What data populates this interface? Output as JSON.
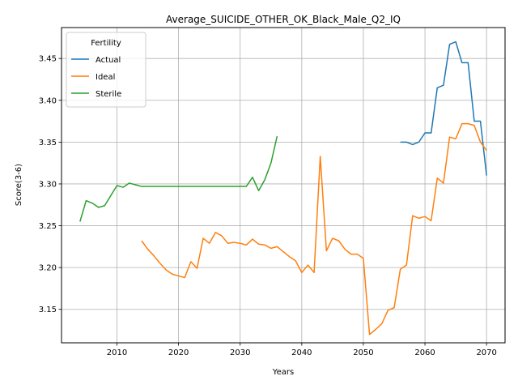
{
  "chart_data": {
    "type": "line",
    "title": "Average_SUICIDE_OTHER_OK_Black_Male_Q2_IQ",
    "xlabel": "Years",
    "ylabel": "Score(3-6)",
    "xlim": [
      2001,
      2073
    ],
    "ylim": [
      3.11,
      3.487
    ],
    "x_ticks": [
      2010,
      2020,
      2030,
      2040,
      2050,
      2060,
      2070
    ],
    "y_ticks": [
      3.15,
      3.2,
      3.25,
      3.3,
      3.35,
      3.4,
      3.45
    ],
    "x_tick_labels": [
      "2010",
      "2020",
      "2030",
      "2040",
      "2050",
      "2060",
      "2070"
    ],
    "y_tick_labels": [
      "3.15",
      "3.20",
      "3.25",
      "3.30",
      "3.35",
      "3.40",
      "3.45"
    ],
    "grid": true,
    "legend": {
      "title": "Fertility",
      "placement": "upper-left"
    },
    "series": [
      {
        "name": "Actual",
        "color": "#1f77b4",
        "x": [
          2056,
          2057,
          2058,
          2059,
          2060,
          2061,
          2062,
          2063,
          2064,
          2065,
          2066,
          2067,
          2068,
          2069,
          2070
        ],
        "y": [
          3.35,
          3.35,
          3.347,
          3.35,
          3.361,
          3.361,
          3.415,
          3.418,
          3.467,
          3.47,
          3.445,
          3.445,
          3.375,
          3.375,
          3.31
        ]
      },
      {
        "name": "Ideal",
        "color": "#ff7f0e",
        "x": [
          2014,
          2015,
          2016,
          2017,
          2018,
          2019,
          2020,
          2021,
          2022,
          2023,
          2024,
          2025,
          2026,
          2027,
          2028,
          2029,
          2030,
          2031,
          2032,
          2033,
          2034,
          2035,
          2036,
          2037,
          2038,
          2039,
          2040,
          2041,
          2042,
          2043,
          2044,
          2045,
          2046,
          2047,
          2048,
          2049,
          2050,
          2051,
          2052,
          2053,
          2054,
          2055,
          2056,
          2057,
          2058,
          2059,
          2060,
          2061,
          2062,
          2063,
          2064,
          2065,
          2066,
          2067,
          2068,
          2069,
          2070
        ],
        "y": [
          3.232,
          3.222,
          3.214,
          3.205,
          3.197,
          3.192,
          3.19,
          3.188,
          3.207,
          3.199,
          3.235,
          3.229,
          3.242,
          3.238,
          3.229,
          3.23,
          3.229,
          3.227,
          3.234,
          3.228,
          3.227,
          3.223,
          3.225,
          3.219,
          3.213,
          3.208,
          3.194,
          3.203,
          3.194,
          3.333,
          3.22,
          3.235,
          3.232,
          3.222,
          3.216,
          3.216,
          3.211,
          3.12,
          3.126,
          3.133,
          3.149,
          3.152,
          3.198,
          3.203,
          3.262,
          3.259,
          3.261,
          3.256,
          3.307,
          3.301,
          3.356,
          3.354,
          3.372,
          3.372,
          3.37,
          3.35,
          3.34
        ]
      },
      {
        "name": "Sterile",
        "color": "#2ca02c",
        "x": [
          2004,
          2005,
          2006,
          2007,
          2008,
          2009,
          2010,
          2011,
          2012,
          2013,
          2014,
          2015,
          2016,
          2017,
          2018,
          2019,
          2020,
          2021,
          2022,
          2023,
          2024,
          2025,
          2026,
          2027,
          2028,
          2029,
          2030,
          2031,
          2032,
          2033,
          2034,
          2035,
          2036
        ],
        "y": [
          3.255,
          3.28,
          3.277,
          3.272,
          3.274,
          3.286,
          3.298,
          3.296,
          3.301,
          3.299,
          3.297,
          3.297,
          3.297,
          3.297,
          3.297,
          3.297,
          3.297,
          3.297,
          3.297,
          3.297,
          3.297,
          3.297,
          3.297,
          3.297,
          3.297,
          3.297,
          3.297,
          3.297,
          3.308,
          3.292,
          3.305,
          3.325,
          3.357
        ]
      }
    ]
  }
}
